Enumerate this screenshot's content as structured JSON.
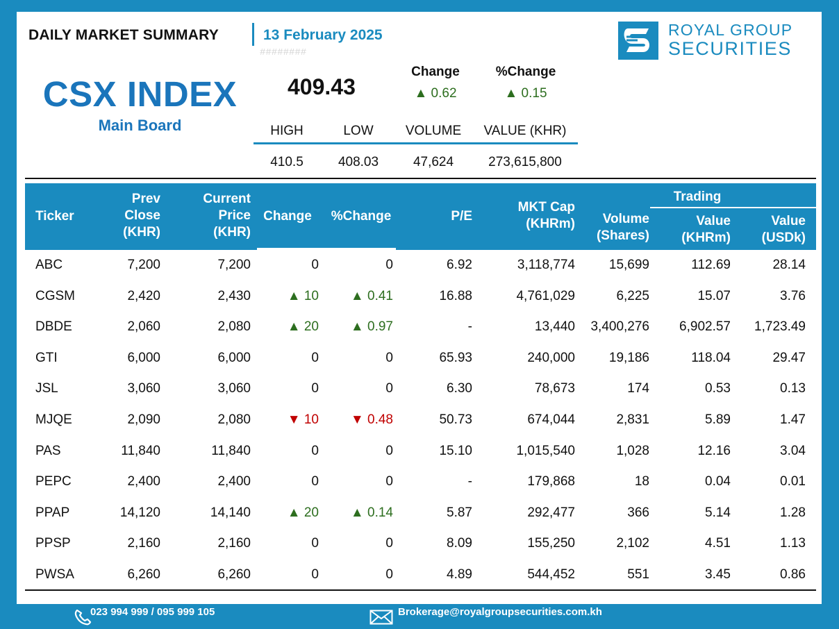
{
  "header": {
    "title": "DAILY MARKET SUMMARY",
    "date": "13 February 2025",
    "hash": "########",
    "logo_line1": "ROYAL GROUP",
    "logo_line2": "SECURITIES"
  },
  "index": {
    "name": "CSX INDEX",
    "board": "Main Board",
    "value": "409.43",
    "change_label": "Change",
    "pct_change_label": "%Change",
    "change": "▲ 0.62",
    "pct_change": "▲ 0.15",
    "stats_labels": [
      "HIGH",
      "LOW",
      "VOLUME",
      "VALUE (KHR)"
    ],
    "stats_values": [
      "410.5",
      "408.03",
      "47,624",
      "273,615,800"
    ]
  },
  "table": {
    "headers": {
      "ticker": "Ticker",
      "prev_close": [
        "Prev",
        "Close",
        "(KHR)"
      ],
      "current_price": [
        "Current",
        "Price",
        "(KHR)"
      ],
      "change": "Change",
      "pct_change": "%Change",
      "pe": "P/E",
      "mkt_cap": [
        "MKT Cap",
        "(KHRm)"
      ],
      "volume": [
        "Volume",
        "(Shares)"
      ],
      "trading": "Trading",
      "value_khr": [
        "Value",
        "(KHRm)"
      ],
      "value_usd": [
        "Value",
        "(USDk)"
      ]
    },
    "rows": [
      {
        "ticker": "ABC",
        "prev": "7,200",
        "cur": "7,200",
        "chg": "0",
        "pct": "0",
        "dir": "flat",
        "pe": "6.92",
        "cap": "3,118,774",
        "vol": "15,699",
        "vkhr": "112.69",
        "vusd": "28.14"
      },
      {
        "ticker": "CGSM",
        "prev": "2,420",
        "cur": "2,430",
        "chg": "▲ 10",
        "pct": "▲ 0.41",
        "dir": "up",
        "pe": "16.88",
        "cap": "4,761,029",
        "vol": "6,225",
        "vkhr": "15.07",
        "vusd": "3.76"
      },
      {
        "ticker": "DBDE",
        "prev": "2,060",
        "cur": "2,080",
        "chg": "▲ 20",
        "pct": "▲ 0.97",
        "dir": "up",
        "pe": "-",
        "cap": "13,440",
        "vol": "3,400,276",
        "vkhr": "6,902.57",
        "vusd": "1,723.49"
      },
      {
        "ticker": "GTI",
        "prev": "6,000",
        "cur": "6,000",
        "chg": "0",
        "pct": "0",
        "dir": "flat",
        "pe": "65.93",
        "cap": "240,000",
        "vol": "19,186",
        "vkhr": "118.04",
        "vusd": "29.47"
      },
      {
        "ticker": "JSL",
        "prev": "3,060",
        "cur": "3,060",
        "chg": "0",
        "pct": "0",
        "dir": "flat",
        "pe": "6.30",
        "cap": "78,673",
        "vol": "174",
        "vkhr": "0.53",
        "vusd": "0.13"
      },
      {
        "ticker": "MJQE",
        "prev": "2,090",
        "cur": "2,080",
        "chg": "▼ 10",
        "pct": "▼ 0.48",
        "dir": "down",
        "pe": "50.73",
        "cap": "674,044",
        "vol": "2,831",
        "vkhr": "5.89",
        "vusd": "1.47"
      },
      {
        "ticker": "PAS",
        "prev": "11,840",
        "cur": "11,840",
        "chg": "0",
        "pct": "0",
        "dir": "flat",
        "pe": "15.10",
        "cap": "1,015,540",
        "vol": "1,028",
        "vkhr": "12.16",
        "vusd": "3.04"
      },
      {
        "ticker": "PEPC",
        "prev": "2,400",
        "cur": "2,400",
        "chg": "0",
        "pct": "0",
        "dir": "flat",
        "pe": "-",
        "cap": "179,868",
        "vol": "18",
        "vkhr": "0.04",
        "vusd": "0.01"
      },
      {
        "ticker": "PPAP",
        "prev": "14,120",
        "cur": "14,140",
        "chg": "▲ 20",
        "pct": "▲ 0.14",
        "dir": "up",
        "pe": "5.87",
        "cap": "292,477",
        "vol": "366",
        "vkhr": "5.14",
        "vusd": "1.28"
      },
      {
        "ticker": "PPSP",
        "prev": "2,160",
        "cur": "2,160",
        "chg": "0",
        "pct": "0",
        "dir": "flat",
        "pe": "8.09",
        "cap": "155,250",
        "vol": "2,102",
        "vkhr": "4.51",
        "vusd": "1.13"
      },
      {
        "ticker": "PWSA",
        "prev": "6,260",
        "cur": "6,260",
        "chg": "0",
        "pct": "0",
        "dir": "flat",
        "pe": "4.89",
        "cap": "544,452",
        "vol": "551",
        "vkhr": "3.45",
        "vusd": "0.86"
      }
    ]
  },
  "footer": {
    "phone": "023 994 999 / 095 999 105",
    "email": "Brokerage@royalgroupsecurities.com.kh",
    "phone_icon": "phone-icon",
    "email_icon": "envelope-icon"
  },
  "colors": {
    "brand": "#1a8bbf",
    "index_blue": "#1a75bb",
    "up": "#2d6e1f",
    "down": "#c00000"
  }
}
